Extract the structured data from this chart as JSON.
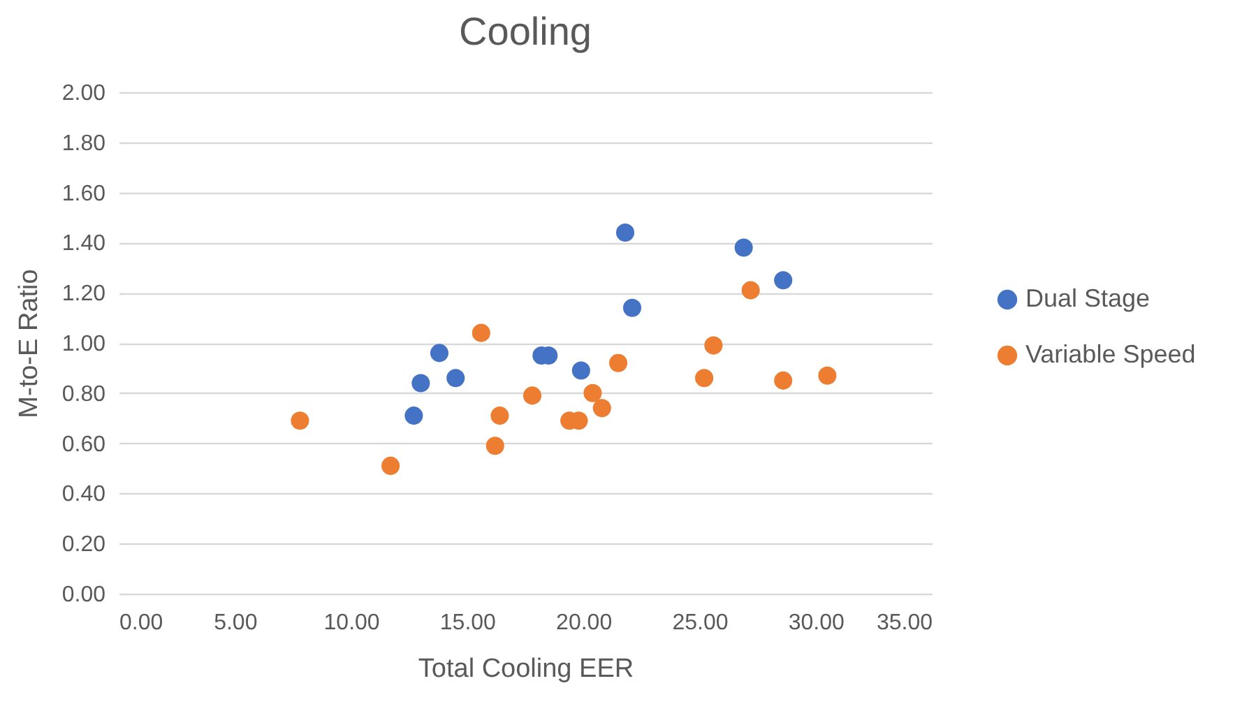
{
  "chart_data": {
    "type": "scatter",
    "title": "Cooling",
    "xlabel": "Total Cooling EER",
    "ylabel": "M-to-E Ratio",
    "series": [
      {
        "name": "Dual Stage",
        "color": "#4472c4",
        "x": [
          12.7,
          13.0,
          13.8,
          14.5,
          18.2,
          18.5,
          19.9,
          21.8,
          22.1,
          26.9,
          28.6
        ],
        "values": [
          0.71,
          0.84,
          0.96,
          0.86,
          0.95,
          0.95,
          0.89,
          1.44,
          1.14,
          1.38,
          1.25
        ]
      },
      {
        "name": "Variable Speed",
        "color": "#ed7d31",
        "x": [
          7.8,
          11.7,
          15.6,
          16.2,
          16.4,
          17.8,
          19.4,
          19.8,
          20.4,
          20.8,
          21.5,
          25.2,
          25.6,
          27.2,
          28.6,
          30.5
        ],
        "values": [
          0.69,
          0.51,
          1.04,
          0.59,
          0.71,
          0.79,
          0.69,
          0.69,
          0.8,
          0.74,
          0.92,
          0.86,
          0.99,
          1.21,
          0.85,
          0.87
        ]
      }
    ],
    "xlim": [
      0,
      35
    ],
    "xticks": [
      {
        "value": 0,
        "label": "0.00"
      },
      {
        "value": 5,
        "label": "5.00"
      },
      {
        "value": 10,
        "label": "10.00"
      },
      {
        "value": 15,
        "label": "15.00"
      },
      {
        "value": 20,
        "label": "20.00"
      },
      {
        "value": 25,
        "label": "25.00"
      },
      {
        "value": 30,
        "label": "30.00"
      },
      {
        "value": 35,
        "label": "35.00"
      }
    ],
    "ylim": [
      0,
      2
    ],
    "yticks": [
      {
        "value": 0,
        "label": "0.00"
      },
      {
        "value": 0.2,
        "label": "0.20"
      },
      {
        "value": 0.4,
        "label": "0.40"
      },
      {
        "value": 0.6,
        "label": "0.60"
      },
      {
        "value": 0.8,
        "label": "0.80"
      },
      {
        "value": 1,
        "label": "1.00"
      },
      {
        "value": 1.2,
        "label": "1.20"
      },
      {
        "value": 1.4,
        "label": "1.40"
      },
      {
        "value": 1.6,
        "label": "1.60"
      },
      {
        "value": 1.8,
        "label": "1.80"
      },
      {
        "value": 2,
        "label": "2.00"
      }
    ],
    "grid": "y",
    "legend": "right",
    "marker": "circle"
  }
}
